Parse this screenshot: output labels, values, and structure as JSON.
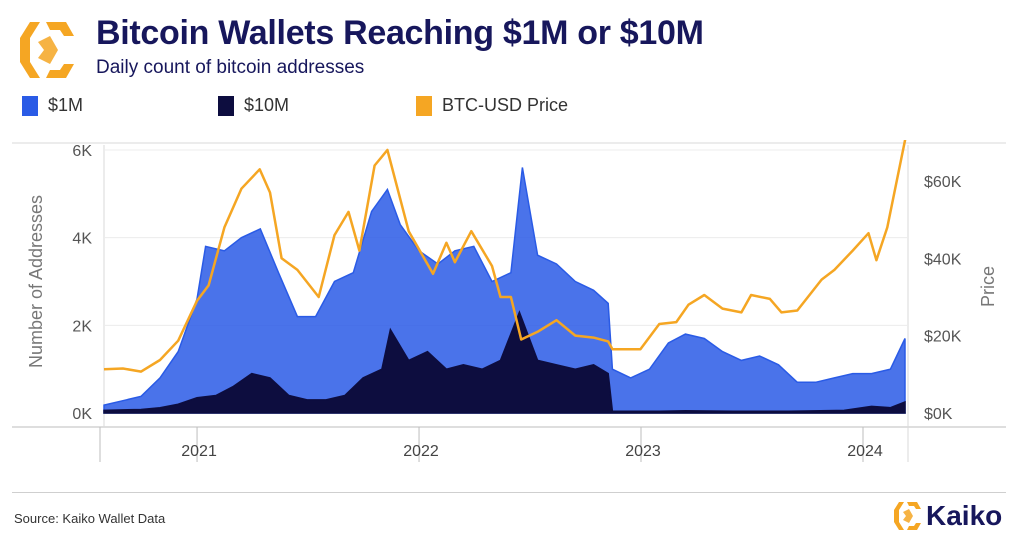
{
  "header": {
    "title": "Bitcoin Wallets Reaching $1M or $10M",
    "subtitle": "Daily count of bitcoin addresses"
  },
  "footer": {
    "source": "Source: Kaiko Wallet Data",
    "brand": "Kaiko"
  },
  "colors": {
    "one_million": "#2a5be6",
    "ten_million": "#0d0d3f",
    "btc_price": "#f5a623",
    "logo": "#f5a623"
  },
  "chart_data": {
    "type": "line",
    "x_ticks": [
      "2021",
      "2022",
      "2023",
      "2024"
    ],
    "x_range": [
      "2020-08-01",
      "2024-03-15"
    ],
    "y_left": {
      "label": "Number of Addresses",
      "ticks": [
        "0K",
        "2K",
        "4K",
        "6K"
      ],
      "range": [
        0,
        6000
      ]
    },
    "y_right": {
      "label": "Price",
      "ticks": [
        "$0K",
        "$20K",
        "$40K",
        "$60K"
      ],
      "range": [
        0,
        68000
      ]
    },
    "legend_placement": "top-left",
    "grid": true,
    "series": [
      {
        "name": "$1M",
        "axis": "left",
        "chart": "area",
        "points": [
          [
            "2020-08-01",
            180
          ],
          [
            "2020-09-01",
            280
          ],
          [
            "2020-10-01",
            380
          ],
          [
            "2020-11-01",
            800
          ],
          [
            "2020-12-01",
            1400
          ],
          [
            "2021-01-01",
            2600
          ],
          [
            "2021-01-15",
            3800
          ],
          [
            "2021-02-15",
            3700
          ],
          [
            "2021-03-15",
            4000
          ],
          [
            "2021-04-15",
            4200
          ],
          [
            "2021-05-15",
            3200
          ],
          [
            "2021-06-15",
            2200
          ],
          [
            "2021-07-15",
            2200
          ],
          [
            "2021-08-15",
            3000
          ],
          [
            "2021-09-15",
            3200
          ],
          [
            "2021-10-15",
            4600
          ],
          [
            "2021-11-10",
            5100
          ],
          [
            "2021-12-01",
            4300
          ],
          [
            "2022-01-01",
            3700
          ],
          [
            "2022-02-01",
            3400
          ],
          [
            "2022-03-01",
            3700
          ],
          [
            "2022-04-01",
            3800
          ],
          [
            "2022-05-01",
            3000
          ],
          [
            "2022-06-01",
            3200
          ],
          [
            "2022-06-20",
            5600
          ],
          [
            "2022-07-15",
            3600
          ],
          [
            "2022-08-15",
            3400
          ],
          [
            "2022-09-15",
            3000
          ],
          [
            "2022-10-15",
            2800
          ],
          [
            "2022-11-08",
            2500
          ],
          [
            "2022-11-15",
            1000
          ],
          [
            "2022-12-15",
            800
          ],
          [
            "2023-01-15",
            1000
          ],
          [
            "2023-02-15",
            1600
          ],
          [
            "2023-03-15",
            1800
          ],
          [
            "2023-04-15",
            1700
          ],
          [
            "2023-05-15",
            1400
          ],
          [
            "2023-06-15",
            1200
          ],
          [
            "2023-07-15",
            1300
          ],
          [
            "2023-08-15",
            1100
          ],
          [
            "2023-09-15",
            700
          ],
          [
            "2023-10-15",
            700
          ],
          [
            "2023-11-15",
            800
          ],
          [
            "2023-12-15",
            900
          ],
          [
            "2024-01-15",
            900
          ],
          [
            "2024-02-15",
            1000
          ],
          [
            "2024-03-10",
            1700
          ]
        ]
      },
      {
        "name": "$10M",
        "axis": "left",
        "chart": "area",
        "points": [
          [
            "2020-08-01",
            60
          ],
          [
            "2020-09-01",
            70
          ],
          [
            "2020-10-01",
            80
          ],
          [
            "2020-11-01",
            120
          ],
          [
            "2020-12-01",
            200
          ],
          [
            "2021-01-01",
            350
          ],
          [
            "2021-02-01",
            400
          ],
          [
            "2021-03-01",
            600
          ],
          [
            "2021-04-01",
            900
          ],
          [
            "2021-05-01",
            800
          ],
          [
            "2021-06-01",
            400
          ],
          [
            "2021-07-01",
            300
          ],
          [
            "2021-08-01",
            300
          ],
          [
            "2021-09-01",
            400
          ],
          [
            "2021-10-01",
            800
          ],
          [
            "2021-11-01",
            1000
          ],
          [
            "2021-11-15",
            1900
          ],
          [
            "2021-12-15",
            1200
          ],
          [
            "2022-01-15",
            1400
          ],
          [
            "2022-02-15",
            1000
          ],
          [
            "2022-03-15",
            1100
          ],
          [
            "2022-04-15",
            1000
          ],
          [
            "2022-05-15",
            1200
          ],
          [
            "2022-06-15",
            2300
          ],
          [
            "2022-07-15",
            1200
          ],
          [
            "2022-08-15",
            1100
          ],
          [
            "2022-09-15",
            1000
          ],
          [
            "2022-10-15",
            1100
          ],
          [
            "2022-11-08",
            900
          ],
          [
            "2022-11-15",
            40
          ],
          [
            "2023-02-01",
            40
          ],
          [
            "2023-03-15",
            50
          ],
          [
            "2023-06-01",
            40
          ],
          [
            "2023-09-01",
            40
          ],
          [
            "2023-12-01",
            60
          ],
          [
            "2024-01-15",
            150
          ],
          [
            "2024-02-15",
            120
          ],
          [
            "2024-03-10",
            250
          ]
        ]
      },
      {
        "name": "BTC-USD Price",
        "axis": "right",
        "chart": "line",
        "points": [
          [
            "2020-08-01",
            11300
          ],
          [
            "2020-09-01",
            11500
          ],
          [
            "2020-10-01",
            10700
          ],
          [
            "2020-11-01",
            13700
          ],
          [
            "2020-12-01",
            18700
          ],
          [
            "2021-01-01",
            29000
          ],
          [
            "2021-01-20",
            33000
          ],
          [
            "2021-02-15",
            48000
          ],
          [
            "2021-03-15",
            58000
          ],
          [
            "2021-04-14",
            63000
          ],
          [
            "2021-05-01",
            57000
          ],
          [
            "2021-05-20",
            40000
          ],
          [
            "2021-06-15",
            37000
          ],
          [
            "2021-07-20",
            30000
          ],
          [
            "2021-08-15",
            46000
          ],
          [
            "2021-09-07",
            52000
          ],
          [
            "2021-09-25",
            42000
          ],
          [
            "2021-10-20",
            64000
          ],
          [
            "2021-11-10",
            68000
          ],
          [
            "2021-12-15",
            47000
          ],
          [
            "2022-01-24",
            36000
          ],
          [
            "2022-02-15",
            44000
          ],
          [
            "2022-03-01",
            39000
          ],
          [
            "2022-03-28",
            47000
          ],
          [
            "2022-05-01",
            38000
          ],
          [
            "2022-05-15",
            30000
          ],
          [
            "2022-06-01",
            30000
          ],
          [
            "2022-06-18",
            19000
          ],
          [
            "2022-07-15",
            21000
          ],
          [
            "2022-08-15",
            24000
          ],
          [
            "2022-09-15",
            20000
          ],
          [
            "2022-10-15",
            19500
          ],
          [
            "2022-11-08",
            18500
          ],
          [
            "2022-11-15",
            16500
          ],
          [
            "2022-12-31",
            16500
          ],
          [
            "2023-01-31",
            23000
          ],
          [
            "2023-02-28",
            23500
          ],
          [
            "2023-03-20",
            28000
          ],
          [
            "2023-04-15",
            30500
          ],
          [
            "2023-05-15",
            27000
          ],
          [
            "2023-06-15",
            26000
          ],
          [
            "2023-07-01",
            30500
          ],
          [
            "2023-08-01",
            29500
          ],
          [
            "2023-08-20",
            26000
          ],
          [
            "2023-09-15",
            26500
          ],
          [
            "2023-10-25",
            34500
          ],
          [
            "2023-11-15",
            37000
          ],
          [
            "2023-12-15",
            42000
          ],
          [
            "2024-01-10",
            46500
          ],
          [
            "2024-01-23",
            39500
          ],
          [
            "2024-02-10",
            48000
          ],
          [
            "2024-02-28",
            62000
          ],
          [
            "2024-03-12",
            72000
          ]
        ]
      }
    ]
  }
}
